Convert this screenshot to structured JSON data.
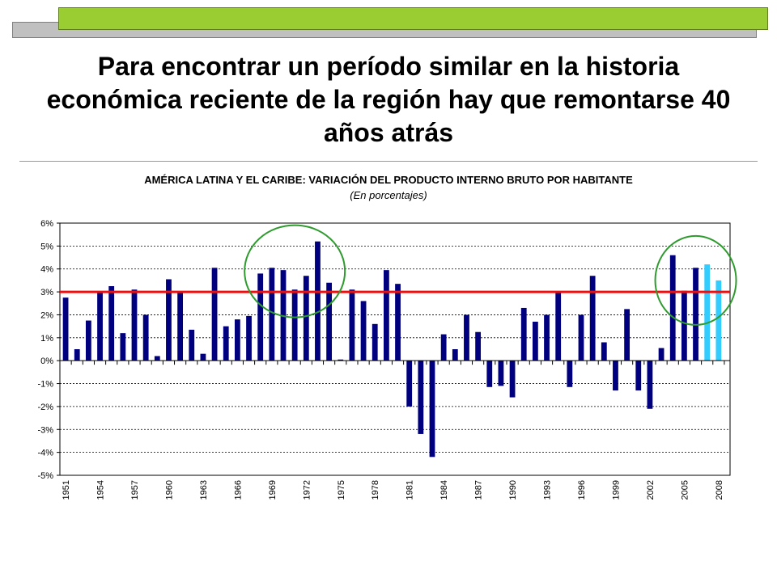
{
  "slide": {
    "title": "Para encontrar un período similar en la historia económica reciente de la región hay que remontarse 40 años atrás"
  },
  "colors": {
    "bar": "#00007f",
    "bar_projection": "#33ccff",
    "reference_line": "#e81010",
    "highlight_circle": "#2f9b2f",
    "deco_green": "#9acd32",
    "deco_gray": "#c0c0c0"
  },
  "chart_data": {
    "type": "bar",
    "title": "AMÉRICA LATINA Y EL CARIBE: VARIACIÓN DEL PRODUCTO INTERNO BRUTO POR HABITANTE",
    "subtitle": "(En porcentajes)",
    "xlabel": "",
    "ylabel": "",
    "ylim": [
      -5,
      6
    ],
    "yticks": [
      6,
      5,
      4,
      3,
      2,
      1,
      0,
      -1,
      -2,
      -3,
      -4,
      -5
    ],
    "ytick_labels": [
      "6%",
      "5%",
      "4%",
      "3%",
      "2%",
      "1%",
      "0%",
      "-1%",
      "-2%",
      "-3%",
      "-4%",
      "-5%"
    ],
    "xtick_labels": [
      "1951",
      "1954",
      "1957",
      "1960",
      "1963",
      "1966",
      "1969",
      "1972",
      "1975",
      "1978",
      "1981",
      "1984",
      "1987",
      "1990",
      "1993",
      "1996",
      "1999",
      "2002",
      "2005",
      "2008"
    ],
    "grid": "horizontal dashed",
    "categories": [
      "1951",
      "1952",
      "1953",
      "1954",
      "1955",
      "1956",
      "1957",
      "1958",
      "1959",
      "1960",
      "1961",
      "1962",
      "1963",
      "1964",
      "1965",
      "1966",
      "1967",
      "1968",
      "1969",
      "1970",
      "1971",
      "1972",
      "1973",
      "1974",
      "1975",
      "1976",
      "1977",
      "1978",
      "1979",
      "1980",
      "1981",
      "1982",
      "1983",
      "1984",
      "1985",
      "1986",
      "1987",
      "1988",
      "1989",
      "1990",
      "1991",
      "1992",
      "1993",
      "1994",
      "1995",
      "1996",
      "1997",
      "1998",
      "1999",
      "2000",
      "2001",
      "2002",
      "2003",
      "2004",
      "2005",
      "2006",
      "2007",
      "2008"
    ],
    "values": [
      2.75,
      0.5,
      1.75,
      2.95,
      3.25,
      1.2,
      3.1,
      2.0,
      0.2,
      3.55,
      2.95,
      1.35,
      0.3,
      4.05,
      1.5,
      1.8,
      1.95,
      3.8,
      4.05,
      3.95,
      3.1,
      3.7,
      5.2,
      3.4,
      0.05,
      3.1,
      2.6,
      1.6,
      3.95,
      3.35,
      -2.0,
      -3.2,
      -4.2,
      1.15,
      0.5,
      2.0,
      1.25,
      -1.15,
      -1.1,
      -1.6,
      2.3,
      1.7,
      2.0,
      2.95,
      -1.15,
      2.0,
      3.7,
      0.8,
      -1.3,
      2.25,
      -1.3,
      -2.1,
      0.55,
      4.6,
      3.05,
      4.05,
      4.2,
      3.5
    ],
    "projection_categories": [
      "2007",
      "2008"
    ],
    "reference_line": 3,
    "annotations": [
      "circle around 1968–1974",
      "circle around 2004–2008"
    ]
  }
}
